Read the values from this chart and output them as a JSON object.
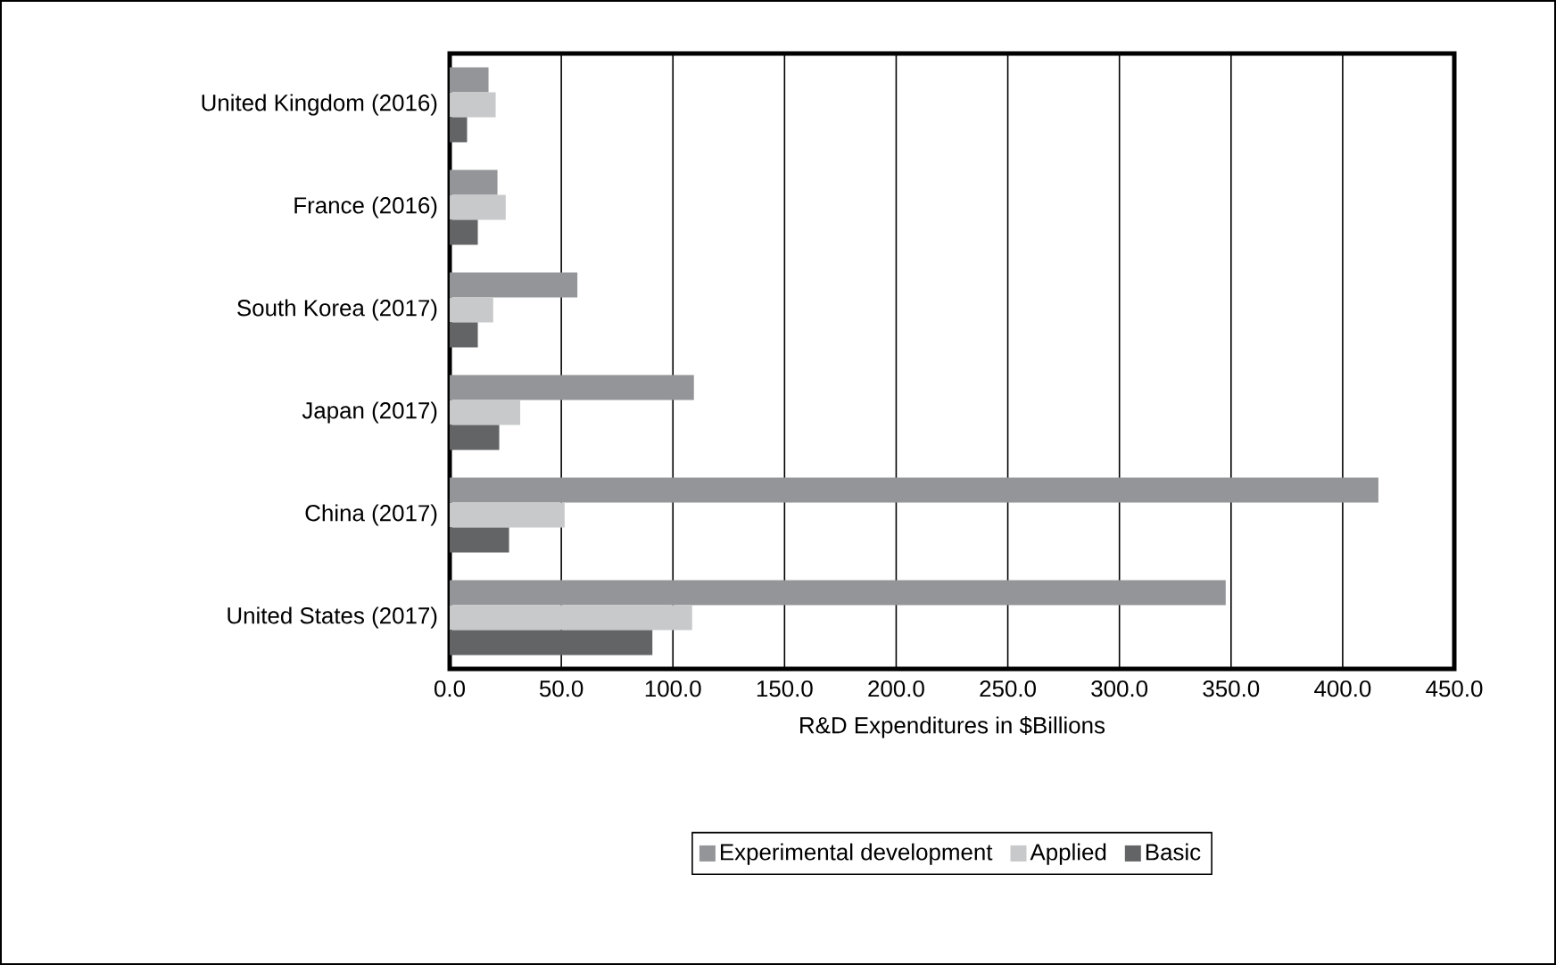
{
  "chart_data": {
    "type": "bar",
    "orientation": "horizontal",
    "xlabel": "R&D Expenditures in $Billions",
    "categories": [
      "United Kingdom (2016)",
      "France (2016)",
      "South Korea (2017)",
      "Japan (2017)",
      "China (2017)",
      "United States (2017)"
    ],
    "series": [
      {
        "name": "Experimental development",
        "color": "#939598",
        "values": [
          17.4,
          21.4,
          57.2,
          109.4,
          416,
          347.6
        ]
      },
      {
        "name": "Applied",
        "color": "#c8c9cb",
        "values": [
          20.6,
          25.1,
          19.5,
          31.6,
          51.5,
          108.6
        ]
      },
      {
        "name": "Basic",
        "color": "#636466",
        "values": [
          7.8,
          12.6,
          12.6,
          22.2,
          26.6,
          90.8
        ]
      }
    ],
    "xlim": [
      0,
      450
    ],
    "xticks": [
      {
        "value": 0,
        "label": "0.0"
      },
      {
        "value": 50,
        "label": "50.0"
      },
      {
        "value": 100,
        "label": "100.0"
      },
      {
        "value": 150,
        "label": "150.0"
      },
      {
        "value": 200,
        "label": "200.0"
      },
      {
        "value": 250,
        "label": "250.0"
      },
      {
        "value": 300,
        "label": "300.0"
      },
      {
        "value": 350,
        "label": "350.0"
      },
      {
        "value": 400,
        "label": "400.0"
      },
      {
        "value": 450,
        "label": "450.0"
      }
    ],
    "grid": "x",
    "legend": "bottom"
  }
}
